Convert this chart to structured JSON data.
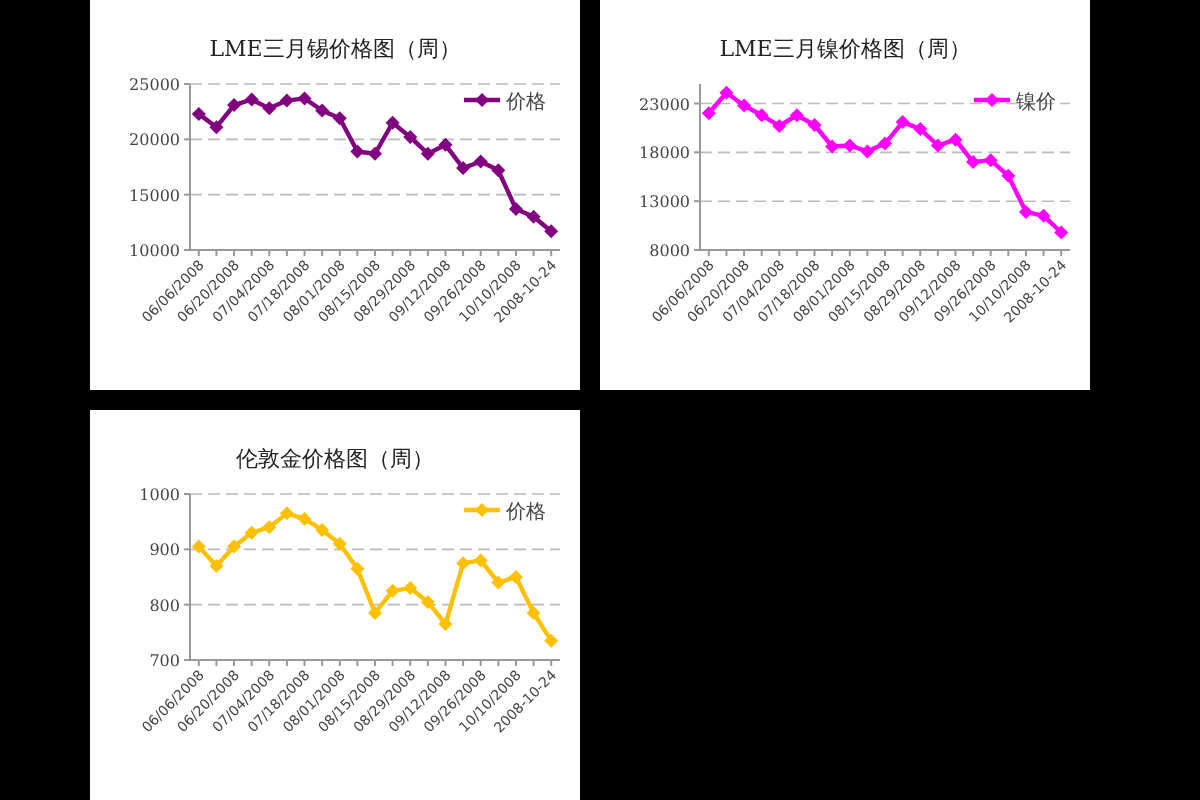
{
  "chart_data": [
    {
      "type": "line",
      "title": "LME三月锡价格图（周）",
      "categories": [
        "06/06/2008",
        null,
        "06/20/2008",
        null,
        "07/04/2008",
        null,
        "07/18/2008",
        null,
        "08/01/2008",
        null,
        "08/15/2008",
        null,
        "08/29/2008",
        null,
        "09/12/2008",
        null,
        "09/26/2008",
        null,
        "10/10/2008",
        null,
        "2008-10-24"
      ],
      "series": [
        {
          "name": "价格",
          "color": "#800080",
          "values": [
            22300,
            21100,
            23100,
            23600,
            22800,
            23500,
            23700,
            22600,
            21900,
            18900,
            18700,
            21500,
            20200,
            18700,
            19500,
            17400,
            18000,
            17200,
            13700,
            13000,
            11700
          ]
        }
      ],
      "ylim": [
        10000,
        25000
      ],
      "yticks": [
        10000,
        15000,
        20000,
        25000
      ],
      "grid": "y",
      "legend": "top right",
      "marker": "diamond",
      "line_style": "solid"
    },
    {
      "type": "line",
      "title": "LME三月镍价格图（周）",
      "categories": [
        "06/06/2008",
        null,
        "06/20/2008",
        null,
        "07/04/2008",
        null,
        "07/18/2008",
        null,
        "08/01/2008",
        null,
        "08/15/2008",
        null,
        "08/29/2008",
        null,
        "09/12/2008",
        null,
        "09/26/2008",
        null,
        "10/10/2008",
        null,
        "2008-10-24"
      ],
      "series": [
        {
          "name": "镍价",
          "color": "#ff00ff",
          "values": [
            22000,
            24100,
            22800,
            21800,
            20700,
            21800,
            20800,
            18600,
            18700,
            18100,
            18900,
            21100,
            20400,
            18700,
            19300,
            17000,
            17200,
            15600,
            11900,
            11500,
            9800
          ]
        }
      ],
      "ylim": [
        8000,
        25000
      ],
      "yticks": [
        8000,
        13000,
        18000,
        23000
      ],
      "grid": "y",
      "legend": "top right",
      "marker": "diamond",
      "line_style": "solid"
    },
    {
      "type": "line",
      "title": "伦敦金价格图（周）",
      "categories": [
        "06/06/2008",
        null,
        "06/20/2008",
        null,
        "07/04/2008",
        null,
        "07/18/2008",
        null,
        "08/01/2008",
        null,
        "08/15/2008",
        null,
        "08/29/2008",
        null,
        "09/12/2008",
        null,
        "09/26/2008",
        null,
        "10/10/2008",
        null,
        "2008-10-24"
      ],
      "series": [
        {
          "name": "价格",
          "color": "#ffc000",
          "values": [
            905,
            870,
            905,
            930,
            940,
            965,
            955,
            935,
            910,
            865,
            785,
            825,
            830,
            805,
            765,
            875,
            880,
            840,
            850,
            785,
            735
          ]
        }
      ],
      "ylim": [
        700,
        1000
      ],
      "yticks": [
        700,
        800,
        900,
        1000
      ],
      "grid": "y",
      "legend": "top right",
      "marker": "diamond",
      "line_style": "solid"
    }
  ]
}
